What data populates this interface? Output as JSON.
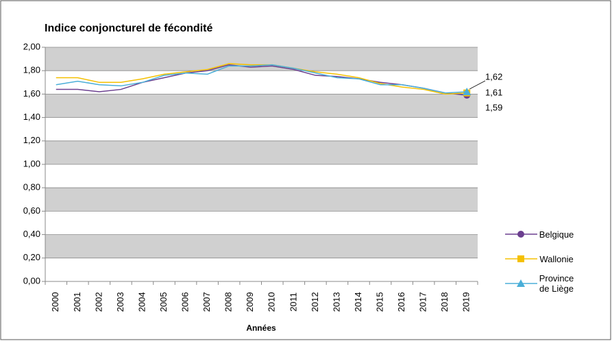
{
  "chart_data": {
    "type": "line",
    "title": "Indice conjoncturel de fécondité",
    "x_label": "Années",
    "categories": [
      "2000",
      "2001",
      "2002",
      "2003",
      "2004",
      "2005",
      "2006",
      "2007",
      "2008",
      "2009",
      "2010",
      "2011",
      "2012",
      "2013",
      "2014",
      "2015",
      "2016",
      "2017",
      "2018",
      "2019"
    ],
    "series": [
      {
        "name": "Belgique",
        "color": "#6b3f8f",
        "marker": "circle",
        "values": [
          1.64,
          1.64,
          1.62,
          1.64,
          1.7,
          1.74,
          1.78,
          1.8,
          1.85,
          1.83,
          1.84,
          1.81,
          1.76,
          1.75,
          1.73,
          1.7,
          1.68,
          1.65,
          1.61,
          1.59
        ],
        "value_labels": [
          null,
          null,
          null,
          null,
          null,
          null,
          null,
          null,
          null,
          null,
          null,
          null,
          null,
          null,
          null,
          null,
          null,
          null,
          null,
          "1,59"
        ]
      },
      {
        "name": "Wallonie",
        "color": "#f5c000",
        "marker": "square",
        "values": [
          1.74,
          1.74,
          1.7,
          1.7,
          1.73,
          1.77,
          1.79,
          1.81,
          1.86,
          1.85,
          1.85,
          1.82,
          1.79,
          1.77,
          1.74,
          1.69,
          1.66,
          1.64,
          1.6,
          1.61
        ],
        "value_labels": [
          null,
          null,
          null,
          null,
          null,
          null,
          null,
          null,
          null,
          null,
          null,
          null,
          null,
          null,
          null,
          null,
          null,
          null,
          null,
          "1,61"
        ]
      },
      {
        "name": "Province de Liège",
        "color": "#4aaed8",
        "marker": "triangle",
        "values": [
          1.68,
          1.71,
          1.68,
          1.67,
          1.7,
          1.76,
          1.78,
          1.77,
          1.84,
          1.84,
          1.85,
          1.82,
          1.78,
          1.74,
          1.73,
          1.68,
          1.68,
          1.65,
          1.61,
          1.62
        ],
        "value_labels": [
          null,
          null,
          null,
          null,
          null,
          null,
          null,
          null,
          null,
          null,
          null,
          null,
          null,
          null,
          null,
          null,
          null,
          null,
          null,
          "1,62"
        ]
      }
    ],
    "ylim": [
      0,
      2
    ],
    "yticks": [
      {
        "value": 0,
        "label": "0,00"
      },
      {
        "value": 0.2,
        "label": "0,20"
      },
      {
        "value": 0.4,
        "label": "0,40"
      },
      {
        "value": 0.6,
        "label": "0,60"
      },
      {
        "value": 0.8,
        "label": "0,80"
      },
      {
        "value": 1,
        "label": "1,00"
      },
      {
        "value": 1.2,
        "label": "1,20"
      },
      {
        "value": 1.4,
        "label": "1,40"
      },
      {
        "value": 1.6,
        "label": "1,60"
      },
      {
        "value": 1.8,
        "label": "1,80"
      },
      {
        "value": 2,
        "label": "2,00"
      }
    ],
    "grid": "bands",
    "legend": "right"
  }
}
